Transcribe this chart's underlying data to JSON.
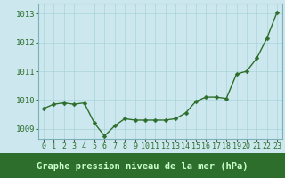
{
  "x": [
    0,
    1,
    2,
    3,
    4,
    5,
    6,
    7,
    8,
    9,
    10,
    11,
    12,
    13,
    14,
    15,
    16,
    17,
    18,
    19,
    20,
    21,
    22,
    23
  ],
  "y": [
    1009.7,
    1009.85,
    1009.9,
    1009.85,
    1009.9,
    1009.2,
    1008.75,
    1009.1,
    1009.35,
    1009.3,
    1009.3,
    1009.3,
    1009.3,
    1009.35,
    1009.55,
    1009.95,
    1010.1,
    1010.1,
    1010.05,
    1010.9,
    1011.0,
    1011.45,
    1012.15,
    1013.05
  ],
  "line_color": "#2d6e2d",
  "marker_color": "#2d6e2d",
  "bg_color": "#cce8ee",
  "plot_bg": "#cce8ee",
  "grid_color": "#a8d4db",
  "bottom_bg": "#2d6e2d",
  "bottom_text_color": "#ccffcc",
  "title": "Graphe pression niveau de la mer (hPa)",
  "ylim": [
    1008.65,
    1013.35
  ],
  "yticks": [
    1009,
    1010,
    1011,
    1012,
    1013
  ],
  "xtick_labels": [
    "0",
    "1",
    "2",
    "3",
    "4",
    "5",
    "6",
    "7",
    "8",
    "9",
    "10",
    "11",
    "12",
    "13",
    "14",
    "15",
    "16",
    "17",
    "18",
    "19",
    "20",
    "21",
    "22",
    "23"
  ],
  "title_fontsize": 7.5,
  "tick_fontsize": 6.5,
  "line_width": 1.0,
  "marker_size": 2.5
}
